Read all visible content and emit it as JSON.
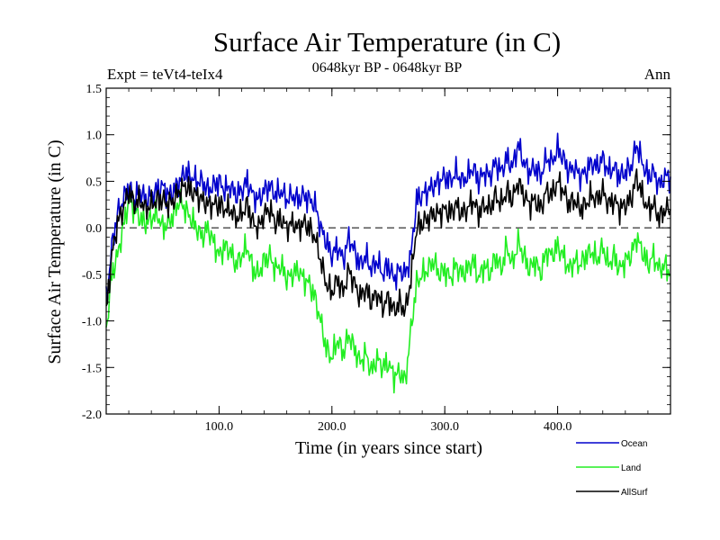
{
  "chart_data": {
    "type": "line",
    "title": "Surface Air Temperature (in C)",
    "subtitle": "0648kyr BP - 0648kyr BP",
    "left_label": "Expt = teVt4-teIx4",
    "right_label": "Ann",
    "xlabel": "Time (in years since start)",
    "ylabel": "Surface Air Temperature (in C)",
    "xlim": [
      0,
      500
    ],
    "ylim": [
      -2.0,
      1.5
    ],
    "x_ticks": [
      100,
      200,
      300,
      400
    ],
    "x_tick_labels": [
      "100.0",
      "200.0",
      "300.0",
      "400.0"
    ],
    "y_ticks": [
      -2.0,
      -1.5,
      -1.0,
      -0.5,
      0.0,
      0.5,
      1.0,
      1.5
    ],
    "y_tick_labels": [
      "-2.0",
      "-1.5",
      "-1.0",
      "-0.5",
      "0.0",
      "0.5",
      "1.0",
      "1.5"
    ],
    "reference_line": 0.0,
    "series": [
      {
        "name": "Ocean",
        "color": "#0000cc",
        "x": [
          0,
          5,
          10,
          15,
          20,
          25,
          30,
          35,
          40,
          45,
          50,
          55,
          60,
          65,
          70,
          75,
          80,
          85,
          90,
          95,
          100,
          105,
          110,
          115,
          120,
          125,
          130,
          135,
          140,
          145,
          150,
          155,
          160,
          165,
          170,
          175,
          180,
          185,
          190,
          195,
          200,
          205,
          210,
          215,
          220,
          225,
          230,
          235,
          240,
          245,
          250,
          255,
          260,
          265,
          270,
          275,
          280,
          285,
          290,
          295,
          300,
          305,
          310,
          315,
          320,
          325,
          330,
          335,
          340,
          345,
          350,
          355,
          360,
          365,
          370,
          375,
          380,
          385,
          390,
          395,
          400,
          405,
          410,
          415,
          420,
          425,
          430,
          435,
          440,
          445,
          450,
          455,
          460,
          465,
          470,
          475,
          480,
          485,
          490,
          495,
          500
        ],
        "values": [
          -0.8,
          -0.2,
          0.15,
          0.3,
          0.45,
          0.3,
          0.4,
          0.3,
          0.35,
          0.4,
          0.45,
          0.35,
          0.4,
          0.5,
          0.6,
          0.55,
          0.5,
          0.5,
          0.4,
          0.45,
          0.5,
          0.4,
          0.45,
          0.35,
          0.4,
          0.5,
          0.35,
          0.3,
          0.4,
          0.45,
          0.35,
          0.4,
          0.3,
          0.35,
          0.3,
          0.35,
          0.3,
          0.25,
          0.0,
          -0.15,
          -0.3,
          -0.2,
          -0.35,
          -0.1,
          -0.25,
          -0.4,
          -0.3,
          -0.45,
          -0.35,
          -0.5,
          -0.4,
          -0.55,
          -0.45,
          -0.5,
          -0.3,
          0.3,
          0.35,
          0.4,
          0.45,
          0.5,
          0.55,
          0.5,
          0.6,
          0.5,
          0.55,
          0.65,
          0.5,
          0.6,
          0.55,
          0.7,
          0.6,
          0.75,
          0.65,
          0.9,
          0.7,
          0.6,
          0.65,
          0.55,
          0.75,
          0.7,
          0.85,
          0.75,
          0.6,
          0.65,
          0.55,
          0.6,
          0.7,
          0.65,
          0.75,
          0.6,
          0.65,
          0.55,
          0.6,
          0.65,
          0.9,
          0.7,
          0.55,
          0.6,
          0.45,
          0.55,
          0.55
        ]
      },
      {
        "name": "Land",
        "color": "#22ee22",
        "x": [
          0,
          5,
          10,
          15,
          20,
          25,
          30,
          35,
          40,
          45,
          50,
          55,
          60,
          65,
          70,
          75,
          80,
          85,
          90,
          95,
          100,
          105,
          110,
          115,
          120,
          125,
          130,
          135,
          140,
          145,
          150,
          155,
          160,
          165,
          170,
          175,
          180,
          185,
          190,
          195,
          200,
          205,
          210,
          215,
          220,
          225,
          230,
          235,
          240,
          245,
          250,
          255,
          260,
          265,
          270,
          275,
          280,
          285,
          290,
          295,
          300,
          305,
          310,
          315,
          320,
          325,
          330,
          335,
          340,
          345,
          350,
          355,
          360,
          365,
          370,
          375,
          380,
          385,
          390,
          395,
          400,
          405,
          410,
          415,
          420,
          425,
          430,
          435,
          440,
          445,
          450,
          455,
          460,
          465,
          470,
          475,
          480,
          485,
          490,
          495,
          500
        ],
        "values": [
          -1.1,
          -0.5,
          -0.3,
          0.0,
          0.3,
          0.2,
          0.1,
          0.05,
          0.1,
          0.15,
          0.0,
          0.05,
          0.15,
          0.3,
          0.2,
          0.1,
          0.0,
          -0.1,
          0.0,
          -0.15,
          -0.3,
          -0.2,
          -0.25,
          -0.4,
          -0.3,
          -0.2,
          -0.45,
          -0.5,
          -0.35,
          -0.3,
          -0.45,
          -0.4,
          -0.55,
          -0.5,
          -0.45,
          -0.55,
          -0.6,
          -0.75,
          -1.0,
          -1.3,
          -1.4,
          -1.2,
          -1.35,
          -1.15,
          -1.3,
          -1.45,
          -1.35,
          -1.55,
          -1.4,
          -1.5,
          -1.45,
          -1.6,
          -1.55,
          -1.65,
          -1.1,
          -0.6,
          -0.5,
          -0.45,
          -0.35,
          -0.5,
          -0.45,
          -0.55,
          -0.4,
          -0.5,
          -0.45,
          -0.35,
          -0.55,
          -0.4,
          -0.5,
          -0.3,
          -0.45,
          -0.2,
          -0.4,
          -0.15,
          -0.3,
          -0.45,
          -0.35,
          -0.5,
          -0.25,
          -0.3,
          -0.2,
          -0.3,
          -0.45,
          -0.35,
          -0.4,
          -0.3,
          -0.25,
          -0.35,
          -0.2,
          -0.4,
          -0.3,
          -0.45,
          -0.35,
          -0.3,
          -0.1,
          -0.25,
          -0.4,
          -0.3,
          -0.45,
          -0.4,
          -0.5
        ]
      },
      {
        "name": "AllSurf",
        "color": "#000000",
        "x": [
          0,
          5,
          10,
          15,
          20,
          25,
          30,
          35,
          40,
          45,
          50,
          55,
          60,
          65,
          70,
          75,
          80,
          85,
          90,
          95,
          100,
          105,
          110,
          115,
          120,
          125,
          130,
          135,
          140,
          145,
          150,
          155,
          160,
          165,
          170,
          175,
          180,
          185,
          190,
          195,
          200,
          205,
          210,
          215,
          220,
          225,
          230,
          235,
          240,
          245,
          250,
          255,
          260,
          265,
          270,
          275,
          280,
          285,
          290,
          295,
          300,
          305,
          310,
          315,
          320,
          325,
          330,
          335,
          340,
          345,
          350,
          355,
          360,
          365,
          370,
          375,
          380,
          385,
          390,
          395,
          400,
          405,
          410,
          415,
          420,
          425,
          430,
          435,
          440,
          445,
          450,
          455,
          460,
          465,
          470,
          475,
          480,
          485,
          490,
          495,
          500
        ],
        "values": [
          -0.9,
          -0.3,
          0.05,
          0.2,
          0.4,
          0.25,
          0.3,
          0.2,
          0.25,
          0.3,
          0.3,
          0.25,
          0.3,
          0.4,
          0.45,
          0.4,
          0.35,
          0.3,
          0.25,
          0.25,
          0.25,
          0.2,
          0.2,
          0.1,
          0.15,
          0.25,
          0.05,
          0.0,
          0.15,
          0.2,
          0.05,
          0.1,
          0.0,
          0.05,
          0.0,
          0.05,
          0.0,
          -0.1,
          -0.35,
          -0.6,
          -0.7,
          -0.55,
          -0.7,
          -0.45,
          -0.6,
          -0.75,
          -0.65,
          -0.8,
          -0.7,
          -0.85,
          -0.75,
          -0.9,
          -0.8,
          -0.9,
          -0.55,
          0.0,
          0.05,
          0.1,
          0.15,
          0.15,
          0.2,
          0.15,
          0.25,
          0.15,
          0.2,
          0.3,
          0.15,
          0.25,
          0.2,
          0.35,
          0.25,
          0.4,
          0.3,
          0.5,
          0.35,
          0.25,
          0.3,
          0.2,
          0.4,
          0.35,
          0.5,
          0.4,
          0.25,
          0.3,
          0.2,
          0.25,
          0.35,
          0.3,
          0.4,
          0.25,
          0.3,
          0.2,
          0.25,
          0.3,
          0.55,
          0.35,
          0.2,
          0.25,
          0.1,
          0.2,
          0.2
        ]
      }
    ],
    "legend": [
      {
        "label": "Ocean",
        "color": "#0000cc"
      },
      {
        "label": "Land",
        "color": "#22ee22"
      },
      {
        "label": "AllSurf",
        "color": "#000000"
      }
    ],
    "legend_position": "bottom-right",
    "grid": false
  }
}
